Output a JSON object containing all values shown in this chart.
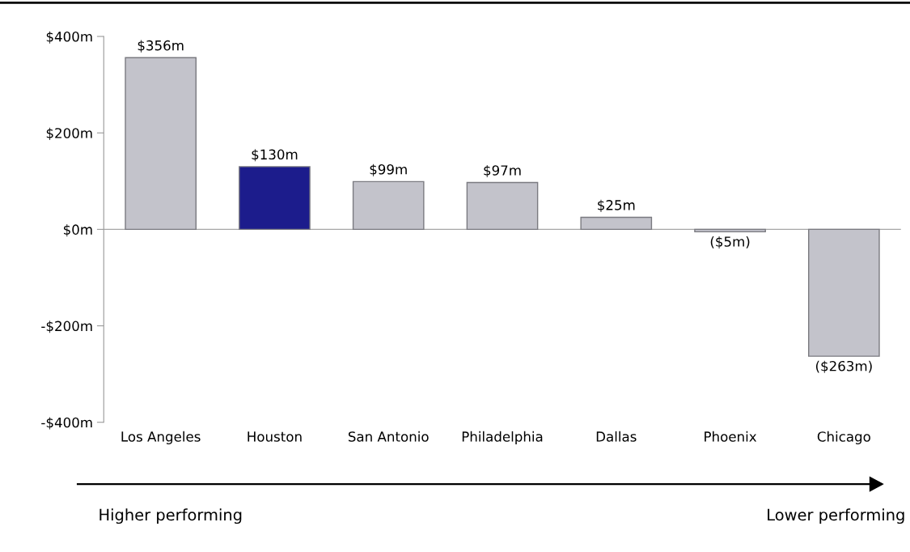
{
  "chart_data": {
    "type": "bar",
    "categories": [
      "Los Angeles",
      "Houston",
      "San Antonio",
      "Philadelphia",
      "Dallas",
      "Phoenix",
      "Chicago"
    ],
    "values": [
      356,
      130,
      99,
      97,
      25,
      -5,
      -263
    ],
    "colors": [
      "#c3c3cb",
      "#1c1c8c",
      "#c3c3cb",
      "#c3c3cb",
      "#c3c3cb",
      "#c3c3cb",
      "#c3c3cb"
    ],
    "value_labels": [
      "$356m",
      "$130m",
      "$99m",
      "$97m",
      "$25m",
      "($5m)",
      "($263m)"
    ],
    "ylim": [
      -400,
      400
    ],
    "yticks": [
      {
        "value": -400,
        "label": "-$400m"
      },
      {
        "value": -200,
        "label": "-$200m"
      },
      {
        "value": 0,
        "label": "$0m"
      },
      {
        "value": 200,
        "label": "$200m"
      },
      {
        "value": 400,
        "label": "$400m"
      }
    ],
    "ref_lines": [
      {
        "axis": "y",
        "value": 0,
        "color": "#a6a6a6"
      }
    ],
    "annotations": [
      "Higher performing",
      "Lower performing"
    ]
  }
}
